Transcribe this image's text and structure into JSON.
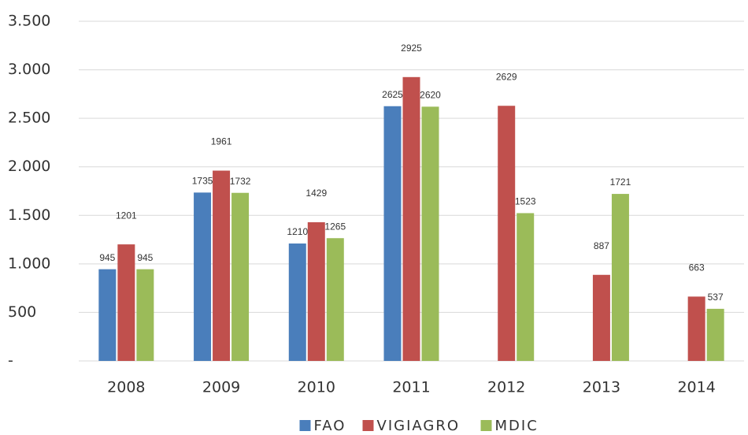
{
  "chart_data": {
    "type": "bar",
    "categories": [
      "2008",
      "2009",
      "2010",
      "2011",
      "2012",
      "2013",
      "2014"
    ],
    "series": [
      {
        "name": "FAO",
        "color": "#4a7ebb",
        "values": [
          945,
          1735,
          1210,
          2625,
          null,
          null,
          null
        ]
      },
      {
        "name": "VIGIAGRO",
        "color": "#c0504d",
        "values": [
          1201,
          1961,
          1429,
          2925,
          2629,
          887,
          663
        ]
      },
      {
        "name": "MDIC",
        "color": "#9bbb59",
        "values": [
          945,
          1732,
          1265,
          2620,
          1523,
          1721,
          537
        ]
      }
    ],
    "ylim": [
      0,
      3500
    ],
    "yticks": [
      {
        "value": 0,
        "label": "-"
      },
      500,
      {
        "value": 1000,
        "label": "1.000"
      },
      {
        "value": 1500,
        "label": "1.500"
      },
      {
        "value": 2000,
        "label": "2.000"
      },
      {
        "value": 2500,
        "label": "2.500"
      },
      {
        "value": 3000,
        "label": "3.000"
      },
      {
        "value": 3500,
        "label": "3.500"
      }
    ],
    "grid": true,
    "legend": "bottom"
  }
}
